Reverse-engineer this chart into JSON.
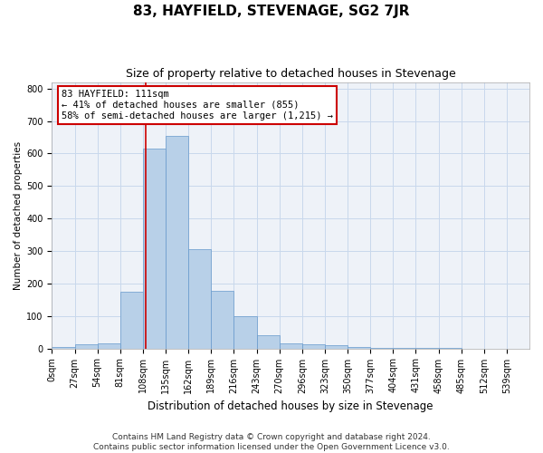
{
  "title": "83, HAYFIELD, STEVENAGE, SG2 7JR",
  "subtitle": "Size of property relative to detached houses in Stevenage",
  "xlabel": "Distribution of detached houses by size in Stevenage",
  "ylabel": "Number of detached properties",
  "bins": [
    "0sqm",
    "27sqm",
    "54sqm",
    "81sqm",
    "108sqm",
    "135sqm",
    "162sqm",
    "189sqm",
    "216sqm",
    "243sqm",
    "270sqm",
    "296sqm",
    "323sqm",
    "350sqm",
    "377sqm",
    "404sqm",
    "431sqm",
    "458sqm",
    "485sqm",
    "512sqm",
    "539sqm"
  ],
  "bar_values": [
    5,
    12,
    15,
    175,
    615,
    655,
    305,
    178,
    98,
    40,
    15,
    12,
    10,
    5,
    2,
    1,
    1,
    1,
    0,
    0,
    0
  ],
  "bar_color": "#b8d0e8",
  "bar_edge_color": "#6699cc",
  "annotation_text": "83 HAYFIELD: 111sqm\n← 41% of detached houses are smaller (855)\n58% of semi-detached houses are larger (1,215) →",
  "annotation_box_color": "white",
  "annotation_box_edge_color": "#cc0000",
  "vline_color": "#cc0000",
  "ylim": [
    0,
    820
  ],
  "yticks": [
    0,
    100,
    200,
    300,
    400,
    500,
    600,
    700,
    800
  ],
  "grid_color": "#c8d8ec",
  "bg_color": "#eef2f8",
  "footer_line1": "Contains HM Land Registry data © Crown copyright and database right 2024.",
  "footer_line2": "Contains public sector information licensed under the Open Government Licence v3.0.",
  "title_fontsize": 11,
  "subtitle_fontsize": 9,
  "xlabel_fontsize": 8.5,
  "ylabel_fontsize": 7.5,
  "tick_fontsize": 7,
  "footer_fontsize": 6.5,
  "annotation_fontsize": 7.5,
  "vline_x_bin": 4.11
}
